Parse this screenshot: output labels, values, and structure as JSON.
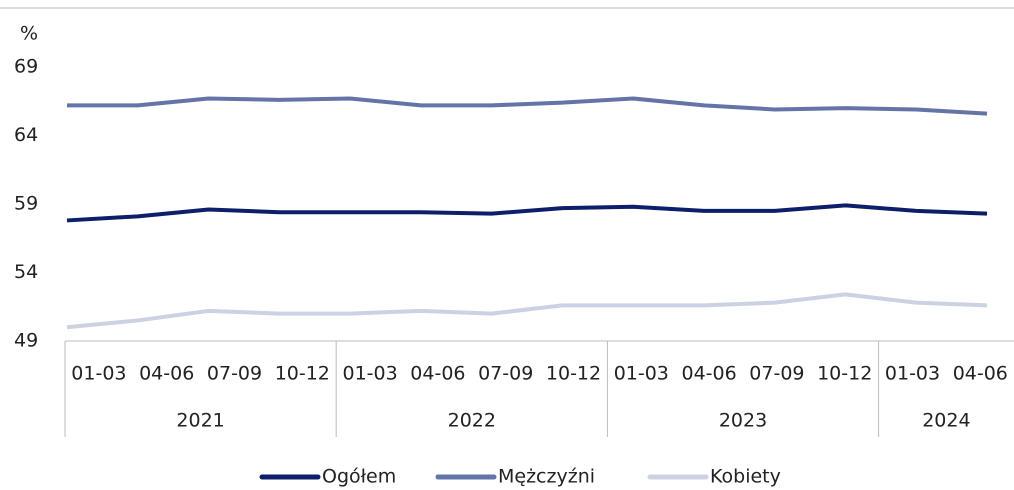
{
  "chart_data": {
    "type": "line",
    "y_label": "%",
    "groups": [
      {
        "label": "2021",
        "categories": [
          "01-03",
          "04-06",
          "07-09",
          "10-12"
        ]
      },
      {
        "label": "2022",
        "categories": [
          "01-03",
          "04-06",
          "07-09",
          "10-12"
        ]
      },
      {
        "label": "2023",
        "categories": [
          "01-03",
          "04-06",
          "07-09",
          "10-12"
        ]
      },
      {
        "label": "2024",
        "categories": [
          "01-03",
          "04-06"
        ]
      }
    ],
    "series": [
      {
        "name": "Ogółem",
        "color": "#0d1f6b",
        "values": [
          57.8,
          58.1,
          58.6,
          58.4,
          58.4,
          58.4,
          58.3,
          58.7,
          58.8,
          58.5,
          58.5,
          58.9,
          58.5,
          58.3
        ]
      },
      {
        "name": "Mężczyźni",
        "color": "#6473a8",
        "values": [
          66.2,
          66.2,
          66.7,
          66.6,
          66.7,
          66.2,
          66.2,
          66.4,
          66.7,
          66.2,
          65.9,
          66.0,
          65.9,
          65.6
        ]
      },
      {
        "name": "Kobiety",
        "color": "#cdd1e4",
        "values": [
          50.0,
          50.5,
          51.2,
          51.0,
          51.0,
          51.2,
          51.0,
          51.6,
          51.6,
          51.6,
          51.8,
          52.4,
          51.8,
          51.6
        ]
      }
    ],
    "ylim": [
      49,
      69
    ],
    "yticks": [
      49,
      54,
      59,
      64,
      69
    ],
    "grid": false,
    "legend": "bottom"
  }
}
